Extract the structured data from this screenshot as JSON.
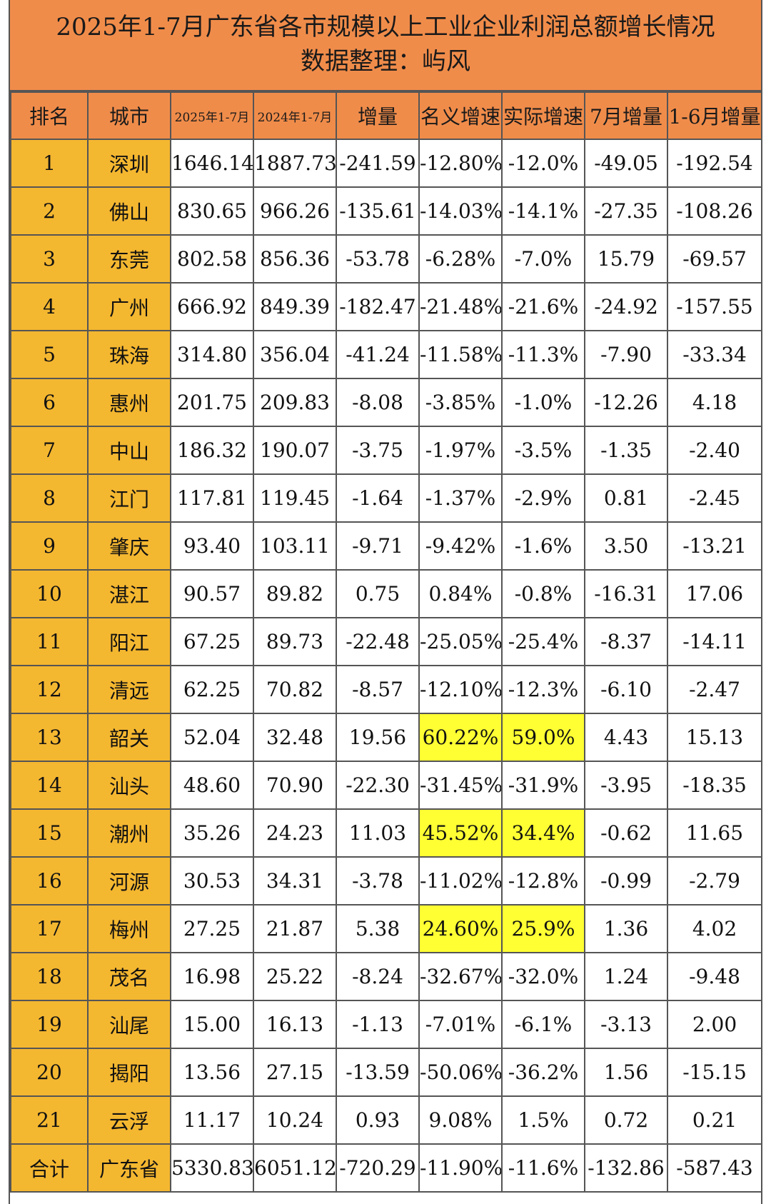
{
  "title": {
    "line1": "2025年1-7月广东省各市规模以上工业企业利润总额增长情况",
    "line2": "数据整理：屿风"
  },
  "columns": [
    "排名",
    "城市",
    "2025年1-7月",
    "2024年1-7月",
    "增量",
    "名义增速",
    "实际增速",
    "7月增量",
    "1-6月增量"
  ],
  "rows": [
    [
      "1",
      "深圳",
      "1646.14",
      "1887.73",
      "-241.59",
      "-12.80%",
      "-12.0%",
      "-49.05",
      "-192.54"
    ],
    [
      "2",
      "佛山",
      "830.65",
      "966.26",
      "-135.61",
      "-14.03%",
      "-14.1%",
      "-27.35",
      "-108.26"
    ],
    [
      "3",
      "东莞",
      "802.58",
      "856.36",
      "-53.78",
      "-6.28%",
      "-7.0%",
      "15.79",
      "-69.57"
    ],
    [
      "4",
      "广州",
      "666.92",
      "849.39",
      "-182.47",
      "-21.48%",
      "-21.6%",
      "-24.92",
      "-157.55"
    ],
    [
      "5",
      "珠海",
      "314.80",
      "356.04",
      "-41.24",
      "-11.58%",
      "-11.3%",
      "-7.90",
      "-33.34"
    ],
    [
      "6",
      "惠州",
      "201.75",
      "209.83",
      "-8.08",
      "-3.85%",
      "-1.0%",
      "-12.26",
      "4.18"
    ],
    [
      "7",
      "中山",
      "186.32",
      "190.07",
      "-3.75",
      "-1.97%",
      "-3.5%",
      "-1.35",
      "-2.40"
    ],
    [
      "8",
      "江门",
      "117.81",
      "119.45",
      "-1.64",
      "-1.37%",
      "-2.9%",
      "0.81",
      "-2.45"
    ],
    [
      "9",
      "肇庆",
      "93.40",
      "103.11",
      "-9.71",
      "-9.42%",
      "-1.6%",
      "3.50",
      "-13.21"
    ],
    [
      "10",
      "湛江",
      "90.57",
      "89.82",
      "0.75",
      "0.84%",
      "-0.8%",
      "-16.31",
      "17.06"
    ],
    [
      "11",
      "阳江",
      "67.25",
      "89.73",
      "-22.48",
      "-25.05%",
      "-25.4%",
      "-8.37",
      "-14.11"
    ],
    [
      "12",
      "清远",
      "62.25",
      "70.82",
      "-8.57",
      "-12.10%",
      "-12.3%",
      "-6.10",
      "-2.47"
    ],
    [
      "13",
      "韶关",
      "52.04",
      "32.48",
      "19.56",
      "60.22%",
      "59.0%",
      "4.43",
      "15.13"
    ],
    [
      "14",
      "汕头",
      "48.60",
      "70.90",
      "-22.30",
      "-31.45%",
      "-31.9%",
      "-3.95",
      "-18.35"
    ],
    [
      "15",
      "潮州",
      "35.26",
      "24.23",
      "11.03",
      "45.52%",
      "34.4%",
      "-0.62",
      "11.65"
    ],
    [
      "16",
      "河源",
      "30.53",
      "34.31",
      "-3.78",
      "-11.02%",
      "-12.8%",
      "-0.99",
      "-2.79"
    ],
    [
      "17",
      "梅州",
      "27.25",
      "21.87",
      "5.38",
      "24.60%",
      "25.9%",
      "1.36",
      "4.02"
    ],
    [
      "18",
      "茂名",
      "16.98",
      "25.22",
      "-8.24",
      "-32.67%",
      "-32.0%",
      "1.24",
      "-9.48"
    ],
    [
      "19",
      "汕尾",
      "15.00",
      "16.13",
      "-1.13",
      "-7.01%",
      "-6.1%",
      "-3.13",
      "2.00"
    ],
    [
      "20",
      "揭阳",
      "13.56",
      "27.15",
      "-13.59",
      "-50.06%",
      "-36.2%",
      "1.56",
      "-15.15"
    ],
    [
      "21",
      "云浮",
      "11.17",
      "10.24",
      "0.93",
      "9.08%",
      "1.5%",
      "0.72",
      "0.21"
    ],
    [
      "合计",
      "广东省",
      "5330.83",
      "6051.12",
      "-720.29",
      "-11.90%",
      "-11.6%",
      "-132.86",
      "-587.43"
    ]
  ],
  "highlighted_rows": [
    "13",
    "15",
    "17"
  ],
  "colors": {
    "header_bg": "#f08c4a",
    "rank_city_bg": "#f4b730",
    "negative_text": "#8a1c2c",
    "highlight_bg": "#ffff33"
  }
}
